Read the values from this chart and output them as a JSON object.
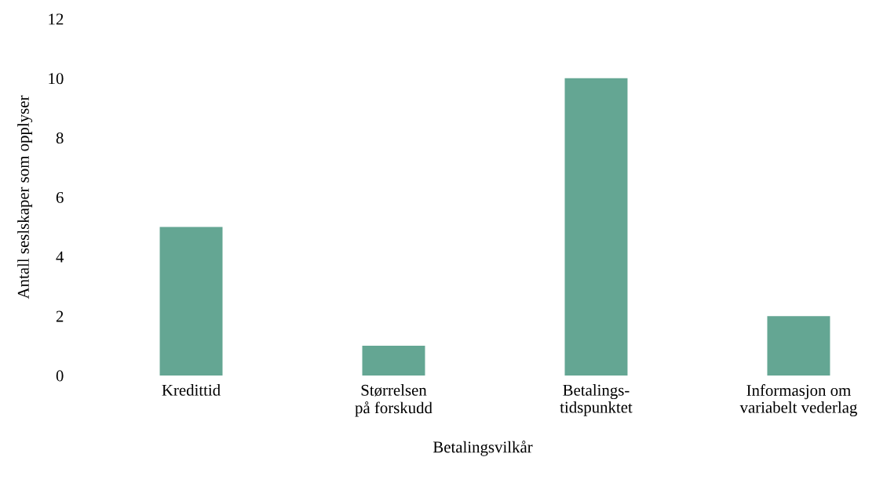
{
  "chart_data": {
    "type": "bar",
    "xlabel": "Betalingsvilkår",
    "ylabel": "Antall seslskaper som opplyser",
    "categories": [
      "Kredittid",
      "Størrelsen\npå forskudd",
      "Betalings-\ntidspunktet",
      "Informasjon om\nvariabelt vederlag"
    ],
    "values": [
      5,
      1,
      10,
      2
    ],
    "color": "#64a693",
    "ylim": [
      0,
      12
    ],
    "yticks": [
      0,
      2,
      4,
      6,
      8,
      10,
      12
    ],
    "grid": false,
    "legend": false
  }
}
